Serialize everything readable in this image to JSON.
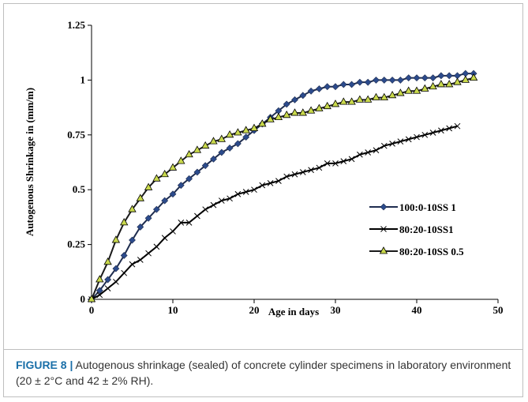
{
  "chart_data": {
    "type": "line",
    "x_label": "Age in days",
    "y_label": "Autogenous Shrinkage in (mm/m)",
    "caption_label": "FIGURE 8 |",
    "caption": "Autogenous shrinkage (sealed) of concrete cylinder specimens in laboratory environment (20 ± 2°C and 42 ± 2% RH).",
    "xlim": [
      0,
      50
    ],
    "xticks": [
      0,
      10,
      20,
      30,
      40,
      50
    ],
    "ylim": [
      0,
      1.25
    ],
    "yticks": [
      0,
      0.25,
      0.5,
      0.75,
      1,
      1.25
    ],
    "legend": "right",
    "series": [
      {
        "name": "100:0-10SS 1",
        "color": "#1f2d4f",
        "marker": "diamond",
        "marker_color": "#2c4b8c",
        "x": [
          0,
          1,
          2,
          3,
          4,
          5,
          6,
          7,
          8,
          9,
          10,
          11,
          12,
          13,
          14,
          15,
          16,
          17,
          18,
          19,
          20,
          21,
          22,
          23,
          24,
          25,
          26,
          27,
          28,
          29,
          30,
          31,
          32,
          33,
          34,
          35,
          36,
          37,
          38,
          39,
          40,
          41,
          42,
          43,
          44,
          45,
          46,
          47
        ],
        "values": [
          0,
          0.04,
          0.09,
          0.14,
          0.2,
          0.27,
          0.33,
          0.37,
          0.41,
          0.45,
          0.48,
          0.52,
          0.55,
          0.58,
          0.61,
          0.64,
          0.67,
          0.69,
          0.71,
          0.74,
          0.77,
          0.8,
          0.83,
          0.86,
          0.89,
          0.91,
          0.93,
          0.95,
          0.96,
          0.97,
          0.97,
          0.98,
          0.98,
          0.99,
          0.99,
          1.0,
          1.0,
          1.0,
          1.0,
          1.01,
          1.01,
          1.01,
          1.01,
          1.02,
          1.02,
          1.02,
          1.03,
          1.03
        ]
      },
      {
        "name": "80:20-10SS1",
        "color": "#000000",
        "marker": "cross",
        "marker_color": "#000000",
        "x": [
          0,
          1,
          2,
          3,
          4,
          5,
          6,
          7,
          8,
          9,
          10,
          11,
          12,
          13,
          14,
          15,
          16,
          17,
          18,
          19,
          20,
          21,
          22,
          23,
          24,
          25,
          26,
          27,
          28,
          29,
          30,
          31,
          32,
          33,
          34,
          35,
          36,
          37,
          38,
          39,
          40,
          41,
          42,
          43,
          44,
          45
        ],
        "values": [
          0,
          0.02,
          0.05,
          0.08,
          0.12,
          0.16,
          0.18,
          0.21,
          0.24,
          0.28,
          0.31,
          0.35,
          0.35,
          0.38,
          0.41,
          0.43,
          0.45,
          0.46,
          0.48,
          0.49,
          0.5,
          0.52,
          0.53,
          0.54,
          0.56,
          0.57,
          0.58,
          0.59,
          0.6,
          0.62,
          0.62,
          0.63,
          0.64,
          0.66,
          0.67,
          0.68,
          0.7,
          0.71,
          0.72,
          0.73,
          0.74,
          0.75,
          0.76,
          0.77,
          0.78,
          0.79
        ]
      },
      {
        "name": "80:20-10SS 0.5",
        "color": "#1a1a1a",
        "marker": "triangle",
        "marker_color": "#c9d94c",
        "x": [
          0,
          1,
          2,
          3,
          4,
          5,
          6,
          7,
          8,
          9,
          10,
          11,
          12,
          13,
          14,
          15,
          16,
          17,
          18,
          19,
          20,
          21,
          22,
          23,
          24,
          25,
          26,
          27,
          28,
          29,
          30,
          31,
          32,
          33,
          34,
          35,
          36,
          37,
          38,
          39,
          40,
          41,
          42,
          43,
          44,
          45,
          46,
          47
        ],
        "values": [
          0,
          0.09,
          0.17,
          0.27,
          0.35,
          0.41,
          0.46,
          0.51,
          0.55,
          0.57,
          0.6,
          0.63,
          0.66,
          0.68,
          0.7,
          0.72,
          0.73,
          0.75,
          0.76,
          0.77,
          0.78,
          0.8,
          0.82,
          0.83,
          0.84,
          0.85,
          0.85,
          0.86,
          0.87,
          0.88,
          0.89,
          0.9,
          0.9,
          0.91,
          0.91,
          0.92,
          0.92,
          0.93,
          0.94,
          0.95,
          0.95,
          0.96,
          0.97,
          0.98,
          0.98,
          0.99,
          1.0,
          1.01
        ]
      }
    ]
  }
}
